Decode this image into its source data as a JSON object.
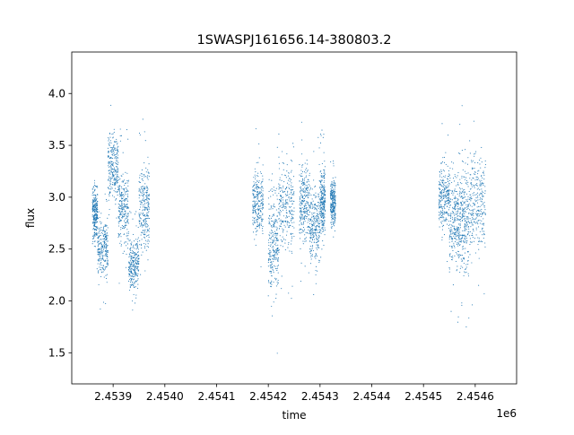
{
  "chart_data": {
    "type": "scatter",
    "title": "1SWASPJ161656.14-380803.2",
    "xlabel": "time",
    "ylabel": "flux",
    "x_offset_label": "1e6",
    "x_ticks": [
      2.4539,
      2.454,
      2.4541,
      2.4542,
      2.4543,
      2.4544,
      2.4545,
      2.4546
    ],
    "x_tick_labels": [
      "2.4539",
      "2.4540",
      "2.4541",
      "2.4542",
      "2.4543",
      "2.4544",
      "2.4545",
      "2.4546"
    ],
    "y_ticks": [
      1.5,
      2.0,
      2.5,
      3.0,
      3.5,
      4.0
    ],
    "y_tick_labels": [
      "1.5",
      "2.0",
      "2.5",
      "3.0",
      "3.5",
      "4.0"
    ],
    "xlim": [
      2.45382,
      2.45468
    ],
    "ylim": [
      1.2,
      4.4
    ],
    "grid": false,
    "marker_color": "#1f77b4",
    "segments": [
      {
        "x_start": 2.45386,
        "x_end": 2.45387,
        "center": 2.85,
        "spread": 0.35
      },
      {
        "x_start": 2.45387,
        "x_end": 2.45389,
        "center": 2.5,
        "spread": 0.4
      },
      {
        "x_start": 2.45389,
        "x_end": 2.45391,
        "center": 3.3,
        "spread": 0.45
      },
      {
        "x_start": 2.45391,
        "x_end": 2.45393,
        "center": 2.9,
        "spread": 0.5
      },
      {
        "x_start": 2.45393,
        "x_end": 2.45395,
        "center": 2.35,
        "spread": 0.35
      },
      {
        "x_start": 2.45395,
        "x_end": 2.45397,
        "center": 2.9,
        "spread": 0.55
      },
      {
        "x_start": 2.45417,
        "x_end": 2.45419,
        "center": 2.95,
        "spread": 0.45
      },
      {
        "x_start": 2.4542,
        "x_end": 2.45422,
        "center": 2.55,
        "spread": 0.7
      },
      {
        "x_start": 2.45422,
        "x_end": 2.45425,
        "center": 2.9,
        "spread": 0.55
      },
      {
        "x_start": 2.45426,
        "x_end": 2.45428,
        "center": 2.95,
        "spread": 0.5
      },
      {
        "x_start": 2.45428,
        "x_end": 2.4543,
        "center": 2.75,
        "spread": 0.55
      },
      {
        "x_start": 2.4543,
        "x_end": 2.45431,
        "center": 2.95,
        "spread": 0.45
      },
      {
        "x_start": 2.45432,
        "x_end": 2.45433,
        "center": 2.95,
        "spread": 0.3
      },
      {
        "x_start": 2.45453,
        "x_end": 2.45455,
        "center": 3.0,
        "spread": 0.45
      },
      {
        "x_start": 2.45455,
        "x_end": 2.45457,
        "center": 2.75,
        "spread": 0.6
      },
      {
        "x_start": 2.45457,
        "x_end": 2.45459,
        "center": 2.8,
        "spread": 0.7
      },
      {
        "x_start": 2.45459,
        "x_end": 2.45462,
        "center": 2.95,
        "spread": 0.65
      }
    ]
  }
}
